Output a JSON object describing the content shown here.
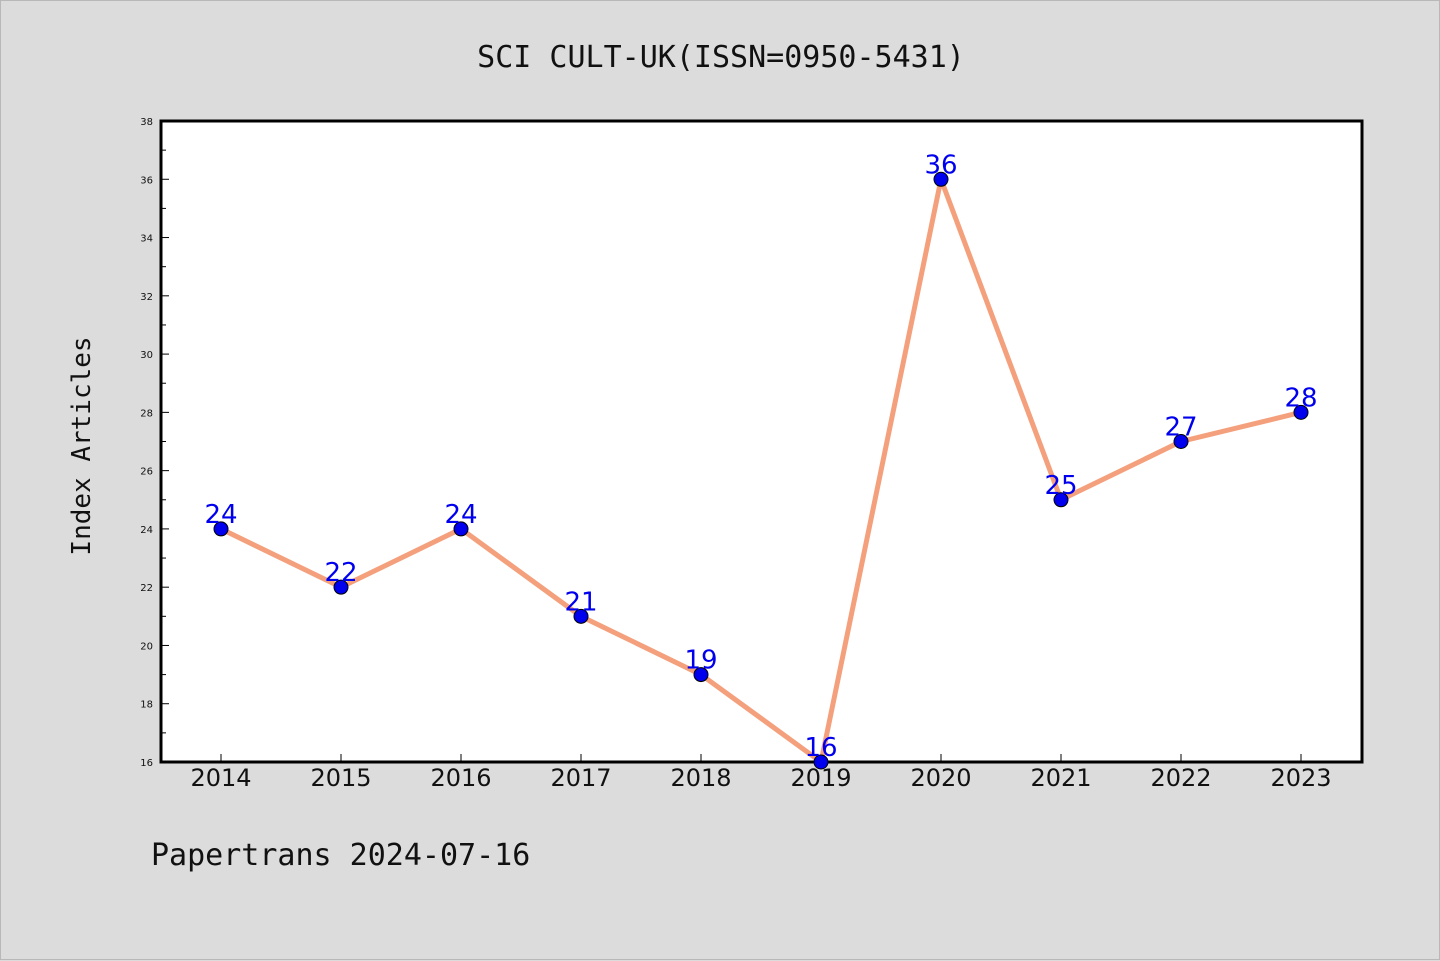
{
  "chart_data": {
    "type": "line",
    "title": "SCI CULT-UK(ISSN=0950-5431)",
    "ylabel": "Index Articles",
    "xlabel": "",
    "x": [
      "2014",
      "2015",
      "2016",
      "2017",
      "2018",
      "2019",
      "2020",
      "2021",
      "2022",
      "2023"
    ],
    "series": [
      {
        "values": [
          24,
          22,
          24,
          21,
          19,
          16,
          36,
          25,
          27,
          28
        ]
      }
    ],
    "ylim": [
      16,
      38
    ],
    "yticks": [
      16,
      18,
      20,
      22,
      24,
      26,
      28,
      30,
      32,
      34,
      36,
      38
    ],
    "grid": false,
    "line_color": "#f4a07c",
    "marker_color": "#0000ee",
    "label_color": "#0000ee"
  },
  "footer": {
    "text": "Papertrans 2024-07-16"
  }
}
